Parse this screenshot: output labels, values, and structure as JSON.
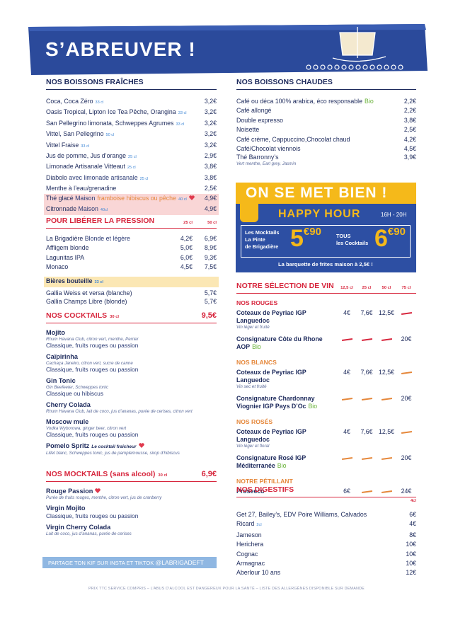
{
  "header": {
    "title": "S’ABREUVER !"
  },
  "fraiches": {
    "title": "NOS BOISSONS FRAÎCHES",
    "items": [
      {
        "name": "Coca, Coca Zéro",
        "size": "33 cl",
        "price": "3,2€"
      },
      {
        "name": "Oasis Tropical, Lipton Ice Tea Pêche, Orangina",
        "size": "33 cl",
        "price": "3,2€"
      },
      {
        "name": "San Pellegrino limonata, Schweppes Agrumes",
        "size": "33 cl",
        "price": "3,2€"
      },
      {
        "name": "Vittel, San Pellegrino",
        "size": "50 cl",
        "price": "3,2€"
      },
      {
        "name": "Vittel Fraise",
        "size": "33 cl",
        "price": "3,2€"
      },
      {
        "name": "Jus de pomme, Jus d’orange",
        "size": "25 cl",
        "price": "2,9€"
      },
      {
        "name": "Limonade Artisanale Vitteaut",
        "size": "25 cl",
        "price": "3,8€"
      },
      {
        "name": "Diabolo",
        "detail": "avec limonade artisanale",
        "size": "25 cl",
        "price": "3,8€"
      },
      {
        "name": "Menthe à l’eau/grenadine",
        "price": "2,5€"
      }
    ],
    "specials": [
      {
        "name": "Thé glacé",
        "detail": "Maison",
        "flavors": "framboise hibiscus ou pêche",
        "size": "40 cl",
        "price": "4,9€"
      },
      {
        "name": "Citronnade",
        "detail": "Maison",
        "size": "40cl",
        "price": "4,9€"
      }
    ]
  },
  "pression": {
    "title": "POUR LIBÉRER LA PRESSION",
    "sizes": [
      "25 cl",
      "50 cl"
    ],
    "items": [
      {
        "name": "La Brigadière",
        "detail": "Blonde et légère",
        "prices": [
          "4,2€",
          "6,9€"
        ]
      },
      {
        "name": "Affligem blonde",
        "prices": [
          "5,0€",
          "8,9€"
        ]
      },
      {
        "name": "Lagunitas IPA",
        "prices": [
          "6,0€",
          "9,3€"
        ]
      },
      {
        "name": "Monaco",
        "prices": [
          "4,5€",
          "7,5€"
        ]
      }
    ],
    "bottles": {
      "title": "Bières bouteille",
      "size": "33 cl",
      "items": [
        {
          "name": "Gallia Weiss et versa (blanche)",
          "price": "5,7€"
        },
        {
          "name": "Gallia Champs Libre (blonde)",
          "price": "5,7€"
        }
      ]
    }
  },
  "cocktails": {
    "title": "NOS COCKTAILS",
    "size": "30 cl",
    "price": "9,5€",
    "items": [
      {
        "name": "Mojito",
        "ingredients": "Rhum Havana Club, citron vert, menthe, Perrier",
        "options": "Classique, fruits rouges ou passion"
      },
      {
        "name": "Caïpirinha",
        "ingredients": "Cachaça Janeiro, citron vert, sucre de canne",
        "options": "Classique, fruits rouges ou passion"
      },
      {
        "name": "Gin Tonic",
        "ingredients": "Gin Beefeeter, Schweppes tonic",
        "options": "Classique ou hibiscus"
      },
      {
        "name": "Cherry Colada",
        "ingredients": "Rhum Havana Club, lait de coco, jus d’ananas, purée de cerises, citron vert"
      },
      {
        "name": "Moscow mule",
        "ingredients": "Vodka Wyborowa, ginger beer, citron vert",
        "options": "Classique, fruits rouges ou passion"
      },
      {
        "name": "Pomelo Spritz",
        "tagline": "Le cocktail fraîcheur",
        "ingredients": "Lillet blanc, Schweppes tonic, jus de pamplemousse, sirop d’hibiscus"
      }
    ]
  },
  "mocktails": {
    "title": "NOS MOCKTAILS (sans alcool)",
    "size": "30 cl",
    "price": "6,9€",
    "items": [
      {
        "name": "Rouge Passion",
        "ingredients": "Purée de fruits rouges, menthe, citron vert, jus de cranberry"
      },
      {
        "name": "Virgin Mojito",
        "options": "Classique, fruits rouges ou passion"
      },
      {
        "name": "Virgin Cherry Colada",
        "ingredients": "Lait de coco, jus d’ananas, purée de cerises"
      }
    ]
  },
  "share": {
    "text": "PARTAGE TON KIF SUR INSTA ET TIKTOK",
    "handle": "@LABRIGADEFT"
  },
  "chaudes": {
    "title": "NOS BOISSONS CHAUDES",
    "items": [
      {
        "name": "Café ou déca 100% arabica, éco responsable",
        "label": "Bio",
        "price": "2,2€"
      },
      {
        "name": "Café allongé",
        "price": "2,2€"
      },
      {
        "name": "Double expresso",
        "price": "3,8€"
      },
      {
        "name": "Noisette",
        "price": "2,5€"
      },
      {
        "name": "Café crème, Cappuccino,Chocolat chaud",
        "price": "4,2€"
      },
      {
        "name": "Café/Chocolat viennois",
        "price": "4,5€"
      },
      {
        "name": "Thé Barronny’s",
        "sub": "Vert menthe, Earl grey, Jasmin",
        "price": "3,9€"
      }
    ]
  },
  "happy": {
    "slogan": "ON SE MET BIEN !",
    "title": "HAPPY HOUR",
    "hours": "16H - 20H",
    "offer1": {
      "lines": [
        "Les Mocktails",
        "La Pinte",
        "de Brigadière"
      ],
      "price_main": "5",
      "price_cents": "€90"
    },
    "offer2": {
      "lines": [
        "TOUS",
        "les Cocktails"
      ],
      "price_main": "6",
      "price_cents": "€90"
    },
    "fries": "La barquette de frites maison à 2,5€ !"
  },
  "vins": {
    "title": "NOTRE SÉLECTION DE VIN",
    "sizes": [
      "12,5 cl",
      "25 cl",
      "50 cl",
      "75 cl"
    ],
    "groups": [
      {
        "title": "NOS ROUGES",
        "items": [
          {
            "name": "Coteaux de Peyriac IGP Languedoc",
            "sub": "Vin léger et fruité",
            "prices": [
              "4€",
              "7,6€",
              "12,5€",
              null
            ]
          },
          {
            "name": "Consignature Côte du Rhone AOP",
            "label": "Bio",
            "prices": [
              null,
              null,
              null,
              "20€"
            ]
          }
        ]
      },
      {
        "title": "NOS BLANCS",
        "items": [
          {
            "name": "Coteaux de Peyriac IGP Languedoc",
            "sub": "Vin sec et fruité",
            "prices": [
              "4€",
              "7,6€",
              "12,5€",
              null
            ]
          },
          {
            "name": "Consignature Chardonnay Viognier IGP Pays D’Oc",
            "label": "Bio",
            "prices": [
              null,
              null,
              null,
              "20€"
            ]
          }
        ]
      },
      {
        "title": "NOS ROSÉS",
        "items": [
          {
            "name": "Coteaux de Peyriac IGP Languedoc",
            "sub": "Vin léger et floral",
            "prices": [
              "4€",
              "7,6€",
              "12,5€",
              null
            ]
          },
          {
            "name": "Consignature Rosé IGP Méditerranée",
            "label": "Bio",
            "prices": [
              null,
              null,
              null,
              "20€"
            ]
          }
        ]
      },
      {
        "title": "NOTRE PÉTILLANT",
        "items": [
          {
            "name": "Prosecco",
            "prices": [
              "6€",
              null,
              null,
              "24€"
            ]
          }
        ]
      }
    ]
  },
  "digestifs": {
    "title": "NOS DIGESTIFS",
    "size": "4cl",
    "items": [
      {
        "name": "Get 27, Bailey’s, EDV Poire Williams, Calvados",
        "price": "6€"
      },
      {
        "name": "Ricard",
        "note": "2cl",
        "price": "4€"
      },
      {
        "name": "Jameson",
        "price": "8€"
      },
      {
        "name": "Herichera",
        "price": "10€"
      },
      {
        "name": "Cognac",
        "price": "10€"
      },
      {
        "name": "Armagnac",
        "price": "10€"
      },
      {
        "name": "Aberlour 10 ans",
        "price": "12€"
      }
    ]
  },
  "footer": {
    "text": "PRIX TTC SERVICE COMPRIS – L’ABUS D’ALCOOL EST DANGEREUX POUR LA SANTÉ – LISTE DES ALLERGÈNES DISPONIBLE SUR DEMANDE"
  }
}
